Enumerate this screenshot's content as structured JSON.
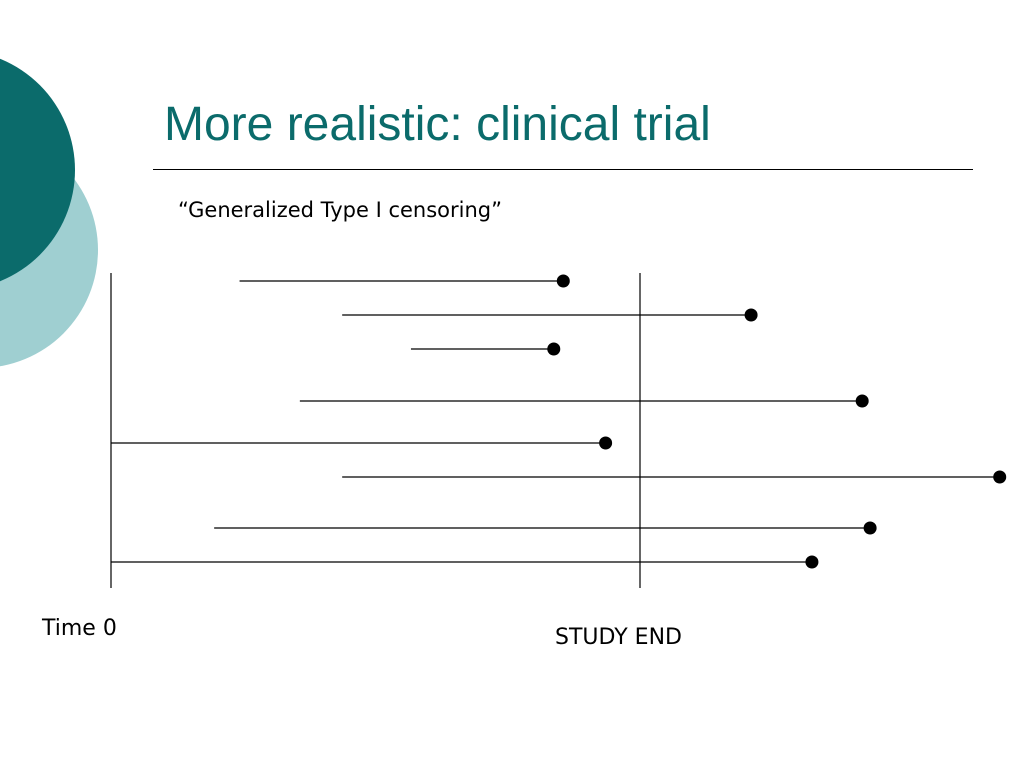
{
  "slide": {
    "title": "More realistic: clinical trial",
    "subtitle": "“Generalized Type I censoring”",
    "label_time0": "Time 0",
    "label_study_end": "STUDY END"
  },
  "colors": {
    "title": "#0b6b6b",
    "decor_dark": "#0b6b6b",
    "decor_light": "#9fcfd1",
    "line": "#000000"
  },
  "chart_data": {
    "type": "timeline",
    "study_end": 1.0,
    "subjects": [
      {
        "start": 0.243,
        "end": 0.855
      },
      {
        "start": 0.437,
        "end": 1.21
      },
      {
        "start": 0.567,
        "end": 0.837
      },
      {
        "start": 0.357,
        "end": 1.42
      },
      {
        "start": 0.0,
        "end": 0.935
      },
      {
        "start": 0.437,
        "end": 1.68
      },
      {
        "start": 0.195,
        "end": 1.435
      },
      {
        "start": 0.0,
        "end": 1.325
      }
    ]
  }
}
